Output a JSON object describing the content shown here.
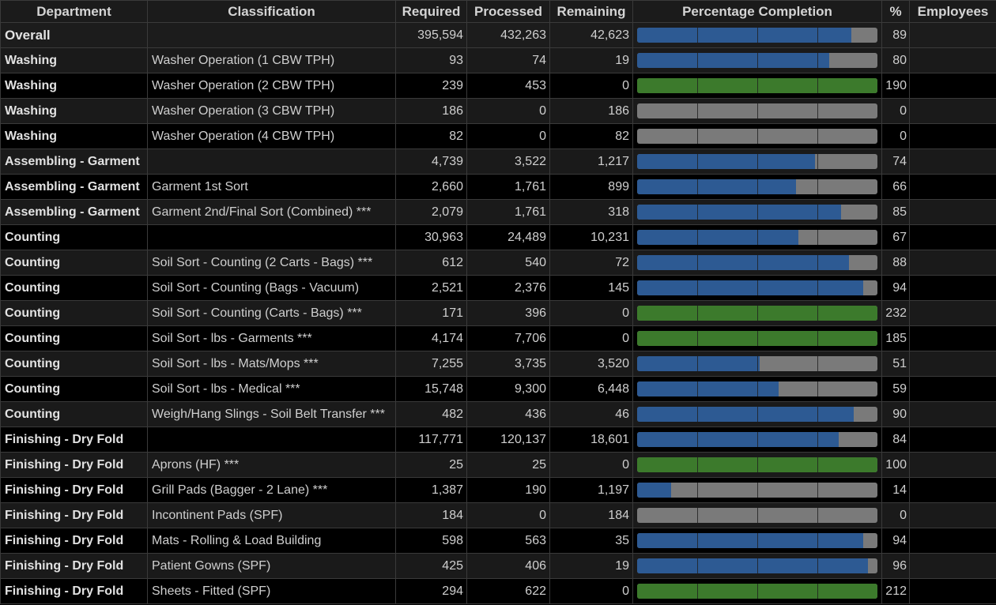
{
  "headers": {
    "department": "Department",
    "classification": "Classification",
    "required": "Required",
    "processed": "Processed",
    "remaining": "Remaining",
    "percentage_completion": "Percentage Completion",
    "percent": "%",
    "employees": "Employees"
  },
  "colors": {
    "in_progress": "#2d5a93",
    "complete": "#3c7a2c",
    "remaining_track": "#7a7a7a"
  },
  "rows": [
    {
      "department": "Overall",
      "classification": "",
      "required": "395,594",
      "processed": "432,263",
      "remaining": "42,623",
      "percent": "89",
      "fraction": 0.89,
      "type": "overall"
    },
    {
      "department": "Washing",
      "classification": "Washer Operation (1 CBW TPH)",
      "required": "93",
      "processed": "74",
      "remaining": "19",
      "percent": "80",
      "fraction": 0.8,
      "type": "item"
    },
    {
      "department": "Washing",
      "classification": "Washer Operation (2 CBW TPH)",
      "required": "239",
      "processed": "453",
      "remaining": "0",
      "percent": "190",
      "fraction": 1.0,
      "type": "item"
    },
    {
      "department": "Washing",
      "classification": "Washer Operation (3 CBW TPH)",
      "required": "186",
      "processed": "0",
      "remaining": "186",
      "percent": "0",
      "fraction": 0,
      "type": "item"
    },
    {
      "department": "Washing",
      "classification": "Washer Operation (4 CBW TPH)",
      "required": "82",
      "processed": "0",
      "remaining": "82",
      "percent": "0",
      "fraction": 0,
      "type": "item"
    },
    {
      "department": "Assembling - Garment",
      "classification": "",
      "required": "4,739",
      "processed": "3,522",
      "remaining": "1,217",
      "percent": "74",
      "fraction": 0.74,
      "type": "group"
    },
    {
      "department": "Assembling - Garment",
      "classification": "Garment 1st Sort",
      "required": "2,660",
      "processed": "1,761",
      "remaining": "899",
      "percent": "66",
      "fraction": 0.66,
      "type": "item"
    },
    {
      "department": "Assembling - Garment",
      "classification": "Garment 2nd/Final Sort (Combined) ***",
      "required": "2,079",
      "processed": "1,761",
      "remaining": "318",
      "percent": "85",
      "fraction": 0.85,
      "type": "item"
    },
    {
      "department": "Counting",
      "classification": "",
      "required": "30,963",
      "processed": "24,489",
      "remaining": "10,231",
      "percent": "67",
      "fraction": 0.67,
      "type": "group"
    },
    {
      "department": "Counting",
      "classification": "Soil Sort - Counting (2 Carts - Bags) ***",
      "required": "612",
      "processed": "540",
      "remaining": "72",
      "percent": "88",
      "fraction": 0.88,
      "type": "item"
    },
    {
      "department": "Counting",
      "classification": "Soil Sort - Counting (Bags - Vacuum)",
      "required": "2,521",
      "processed": "2,376",
      "remaining": "145",
      "percent": "94",
      "fraction": 0.94,
      "type": "item"
    },
    {
      "department": "Counting",
      "classification": "Soil Sort - Counting (Carts - Bags) ***",
      "required": "171",
      "processed": "396",
      "remaining": "0",
      "percent": "232",
      "fraction": 1.0,
      "type": "item"
    },
    {
      "department": "Counting",
      "classification": "Soil Sort - lbs - Garments ***",
      "required": "4,174",
      "processed": "7,706",
      "remaining": "0",
      "percent": "185",
      "fraction": 1.0,
      "type": "item"
    },
    {
      "department": "Counting",
      "classification": "Soil Sort - lbs - Mats/Mops ***",
      "required": "7,255",
      "processed": "3,735",
      "remaining": "3,520",
      "percent": "51",
      "fraction": 0.51,
      "type": "item"
    },
    {
      "department": "Counting",
      "classification": "Soil Sort - lbs - Medical ***",
      "required": "15,748",
      "processed": "9,300",
      "remaining": "6,448",
      "percent": "59",
      "fraction": 0.59,
      "type": "item"
    },
    {
      "department": "Counting",
      "classification": "Weigh/Hang Slings - Soil Belt Transfer ***",
      "required": "482",
      "processed": "436",
      "remaining": "46",
      "percent": "90",
      "fraction": 0.9,
      "type": "item"
    },
    {
      "department": "Finishing - Dry Fold",
      "classification": "",
      "required": "117,771",
      "processed": "120,137",
      "remaining": "18,601",
      "percent": "84",
      "fraction": 0.84,
      "type": "group"
    },
    {
      "department": "Finishing - Dry Fold",
      "classification": "Aprons (HF) ***",
      "required": "25",
      "processed": "25",
      "remaining": "0",
      "percent": "100",
      "fraction": 1.0,
      "type": "item"
    },
    {
      "department": "Finishing - Dry Fold",
      "classification": "Grill Pads (Bagger - 2 Lane) ***",
      "required": "1,387",
      "processed": "190",
      "remaining": "1,197",
      "percent": "14",
      "fraction": 0.14,
      "type": "item"
    },
    {
      "department": "Finishing - Dry Fold",
      "classification": "Incontinent Pads (SPF)",
      "required": "184",
      "processed": "0",
      "remaining": "184",
      "percent": "0",
      "fraction": 0,
      "type": "item"
    },
    {
      "department": "Finishing - Dry Fold",
      "classification": "Mats - Rolling & Load Building",
      "required": "598",
      "processed": "563",
      "remaining": "35",
      "percent": "94",
      "fraction": 0.94,
      "type": "item"
    },
    {
      "department": "Finishing - Dry Fold",
      "classification": "Patient Gowns (SPF)",
      "required": "425",
      "processed": "406",
      "remaining": "19",
      "percent": "96",
      "fraction": 0.96,
      "type": "item"
    },
    {
      "department": "Finishing - Dry Fold",
      "classification": "Sheets - Fitted (SPF)",
      "required": "294",
      "processed": "622",
      "remaining": "0",
      "percent": "212",
      "fraction": 1.0,
      "type": "item"
    }
  ]
}
